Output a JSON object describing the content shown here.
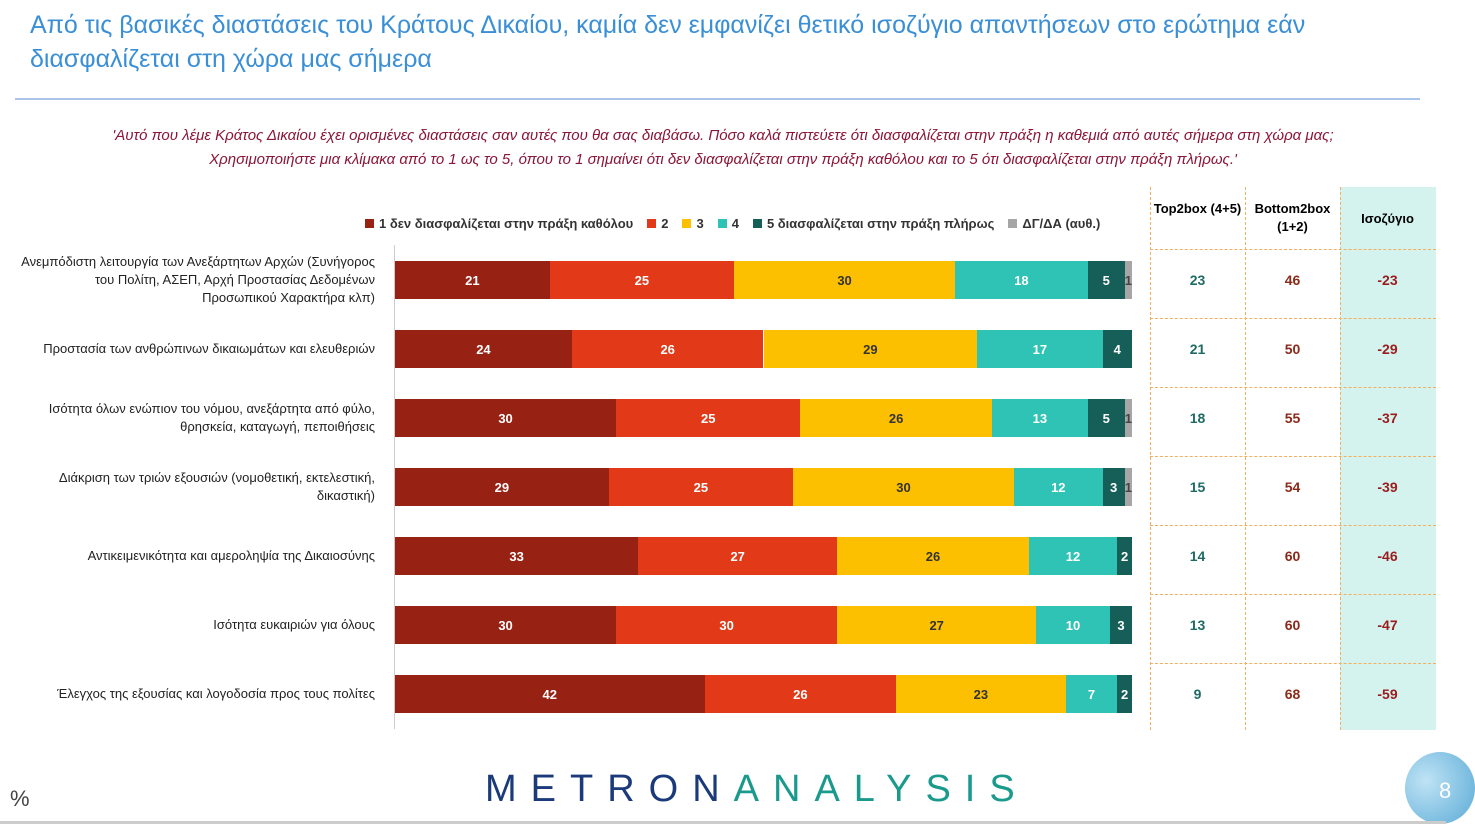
{
  "title": "Από τις βασικές διαστάσεις του Κράτους Δικαίου, καμία δεν εμφανίζει θετικό ισοζύγιο απαντήσεων στο ερώτημα εάν διασφαλίζεται στη χώρα μας σήμερα",
  "subtitle_1": "'Αυτό που λέμε Κράτος Δικαίου έχει ορισμένες διαστάσεις σαν αυτές που θα σας διαβάσω. Πόσο καλά πιστεύετε ότι διασφαλίζεται στην πράξη η καθεμιά από αυτές σήμερα στη χώρα μας;",
  "subtitle_2": "Χρησιμοποιήστε μια κλίμακα από το 1 ως το 5, όπου το 1 σημαίνει ότι δεν διασφαλίζεται στην πράξη καθόλου και το 5 ότι διασφαλίζεται στην πράξη πλήρως.'",
  "unit": "%",
  "logo": {
    "part1": "METRON",
    "part2": "ANALYSIS"
  },
  "page_number": "8",
  "table_headers": {
    "top": "Top2box (4+5)",
    "bottom": "Bottom2box (1+2)",
    "balance": "Ισοζύγιο"
  },
  "colors": {
    "title": "#3a8fd6",
    "top": "#1f6b63",
    "bottom": "#8b2a1a",
    "balance": "#9b1c1c"
  },
  "chart_data": {
    "type": "bar",
    "orientation": "horizontal",
    "stacked": true,
    "legend_position": "top",
    "grid": false,
    "series": [
      {
        "name": "1  δεν διασφαλίζεται στην πράξη καθόλου",
        "color": "#972214",
        "values": [
          21,
          24,
          30,
          29,
          33,
          30,
          42
        ]
      },
      {
        "name": "2",
        "color": "#e23a19",
        "values": [
          25,
          26,
          25,
          25,
          27,
          30,
          26
        ]
      },
      {
        "name": "3",
        "color": "#fdc000",
        "values": [
          30,
          29,
          26,
          30,
          26,
          27,
          23
        ]
      },
      {
        "name": "4",
        "color": "#2ec3b5",
        "values": [
          18,
          17,
          13,
          12,
          12,
          10,
          7
        ]
      },
      {
        "name": "5 διασφαλίζεται στην πράξη πλήρως",
        "color": "#165f58",
        "values": [
          5,
          4,
          5,
          3,
          2,
          3,
          2
        ]
      },
      {
        "name": "ΔΓ/ΔΑ (αυθ.)",
        "color": "#a6a6a6",
        "values": [
          1,
          0,
          1,
          1,
          0,
          0,
          0
        ]
      }
    ],
    "categories": [
      "Ανεμπόδιστη λειτουργία των Ανεξάρτητων Αρχών (Συνήγορος του Πολίτη, ΑΣΕΠ, Αρχή Προστασίας Δεδομένων Προσωπικού Χαρακτήρα κλπ)",
      "Προστασία των ανθρώπινων δικαιωμάτων και ελευθεριών",
      "Ισότητα όλων ενώπιον του νόμου, ανεξάρτητα από φύλο, θρησκεία, καταγωγή, πεποιθήσεις",
      "Διάκριση των τριών εξουσιών (νομοθετική, εκτελεστική, δικαστική)",
      "Αντικειμενικότητα και αμεροληψία της Δικαιοσύνης",
      "Ισότητα ευκαιριών για όλους",
      "Έλεγχος της εξουσίας και λογοδοσία προς τους πολίτες"
    ],
    "top2box": [
      23,
      21,
      18,
      15,
      14,
      13,
      9
    ],
    "bottom2box": [
      46,
      50,
      55,
      54,
      60,
      60,
      68
    ],
    "balance": [
      -23,
      -29,
      -37,
      -39,
      -46,
      -47,
      -59
    ]
  }
}
